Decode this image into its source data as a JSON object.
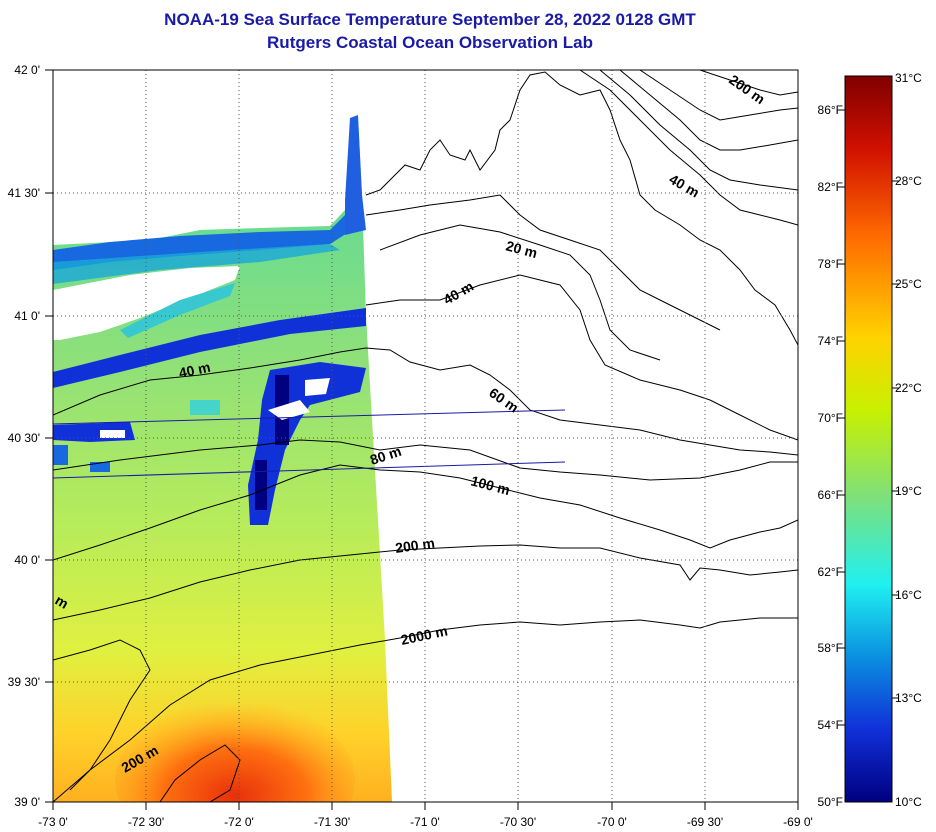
{
  "header": {
    "title": "NOAA-19 Sea Surface Temperature September 28, 2022 0128 GMT",
    "subtitle": "Rutgers Coastal Ocean Observation Lab"
  },
  "map": {
    "lat_labels": [
      "42 0'",
      "41 30'",
      "41 0'",
      "40 30'",
      "40 0'",
      "39 30'",
      "39 0'"
    ],
    "lon_labels": [
      "-73 0'",
      "-72 30'",
      "-72 0'",
      "-71 30'",
      "-71 0'",
      "-70 30'",
      "-70 0'",
      "-69 30'",
      "-69 0'"
    ],
    "contour_labels": [
      "200 m",
      "40 m",
      "20 m",
      "40 m",
      "40 m",
      "60 m",
      "80 m",
      "100 m",
      "200 m",
      "2000 m",
      "200 m",
      "m"
    ]
  },
  "colorbar": {
    "celsius": [
      "31°C",
      "28°C",
      "25°C",
      "22°C",
      "19°C",
      "16°C",
      "13°C",
      "10°C"
    ],
    "fahrenheit": [
      "86°F",
      "82°F",
      "78°F",
      "74°F",
      "70°F",
      "66°F",
      "62°F",
      "58°F",
      "54°F",
      "50°F"
    ],
    "colors": [
      "#800000",
      "#d01000",
      "#ff6a00",
      "#ffd200",
      "#c8f000",
      "#7ee07a",
      "#20f0f0",
      "#0a90e0",
      "#1030d8",
      "#000080"
    ]
  }
}
